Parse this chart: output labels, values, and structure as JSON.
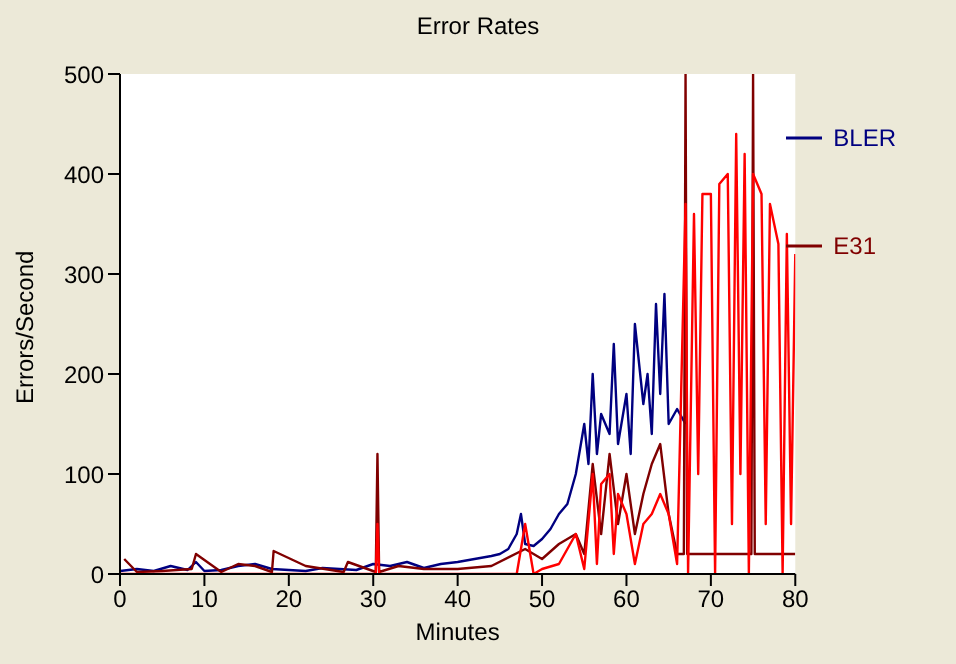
{
  "chart_data": {
    "type": "line",
    "title": "Error Rates",
    "xlabel": "Minutes",
    "ylabel": "Errors/Second",
    "xlim": [
      0,
      80
    ],
    "xticks": [
      0,
      10,
      20,
      30,
      40,
      50,
      60,
      70,
      80
    ],
    "ylim": [
      0,
      500
    ],
    "yticks": [
      0,
      100,
      200,
      300,
      400,
      500
    ],
    "grid": false,
    "legend": "top right",
    "marker": "none",
    "line_style": "solid",
    "series": [
      {
        "name": "BLER",
        "color": "#000080",
        "x": [
          0,
          2,
          4,
          6,
          8,
          9,
          10,
          12,
          14,
          16,
          18,
          20,
          22,
          24,
          26,
          28,
          30,
          32,
          34,
          36,
          38,
          40,
          42,
          44,
          45,
          46,
          47,
          47.5,
          48,
          49,
          50,
          51,
          52,
          53,
          54,
          55,
          55.5,
          56,
          56.5,
          57,
          58,
          58.5,
          59,
          60,
          60.5,
          61,
          62,
          62.5,
          63,
          63.5,
          64,
          64.5,
          65,
          66,
          67
        ],
        "values": [
          3,
          5,
          3,
          8,
          4,
          12,
          3,
          4,
          8,
          10,
          5,
          4,
          3,
          6,
          5,
          4,
          10,
          8,
          12,
          6,
          10,
          12,
          15,
          18,
          20,
          25,
          40,
          60,
          30,
          28,
          35,
          45,
          60,
          70,
          100,
          150,
          110,
          200,
          120,
          160,
          140,
          230,
          130,
          180,
          120,
          250,
          170,
          200,
          140,
          270,
          180,
          280,
          150,
          165,
          150
        ]
      },
      {
        "name": "E31",
        "color": "#800000",
        "x": [
          0.5,
          2,
          5,
          8.5,
          9,
          12,
          14,
          16,
          18,
          18.2,
          22,
          26.5,
          27,
          30.3,
          30.5,
          30.7,
          33,
          36,
          40,
          44,
          48,
          50,
          52,
          54,
          55,
          56,
          57,
          58,
          59,
          60,
          61,
          62,
          63,
          64,
          65,
          66,
          66.8,
          67,
          67.2,
          70,
          72,
          74.8,
          75,
          75.2,
          78,
          80
        ],
        "values": [
          15,
          2,
          3,
          5,
          20,
          2,
          10,
          8,
          2,
          23,
          8,
          2,
          12,
          2,
          120,
          2,
          8,
          5,
          5,
          8,
          25,
          15,
          30,
          40,
          20,
          110,
          40,
          120,
          50,
          100,
          40,
          80,
          110,
          130,
          60,
          20,
          20,
          500,
          20,
          20,
          20,
          20,
          500,
          20,
          20,
          20
        ]
      },
      {
        "color": "#ff0000",
        "x": [
          0,
          30.3,
          30.5,
          30.7,
          40,
          47,
          48,
          49,
          50,
          52,
          54,
          55,
          56,
          56.5,
          57,
          58,
          58.5,
          59,
          60,
          61,
          62,
          63,
          64,
          65,
          66,
          67,
          67.3,
          68,
          68.5,
          69,
          70,
          70.5,
          71,
          72,
          72.5,
          73,
          73.5,
          74,
          74.5,
          75,
          76,
          76.5,
          77,
          78,
          78.5,
          79,
          79.5,
          80
        ],
        "values": [
          0,
          0,
          50,
          0,
          0,
          0,
          50,
          0,
          5,
          10,
          40,
          5,
          100,
          10,
          90,
          100,
          20,
          80,
          60,
          10,
          50,
          60,
          80,
          60,
          10,
          370,
          0,
          360,
          100,
          380,
          380,
          0,
          390,
          400,
          50,
          440,
          100,
          420,
          0,
          400,
          380,
          50,
          370,
          330,
          0,
          340,
          50,
          320
        ]
      }
    ]
  }
}
